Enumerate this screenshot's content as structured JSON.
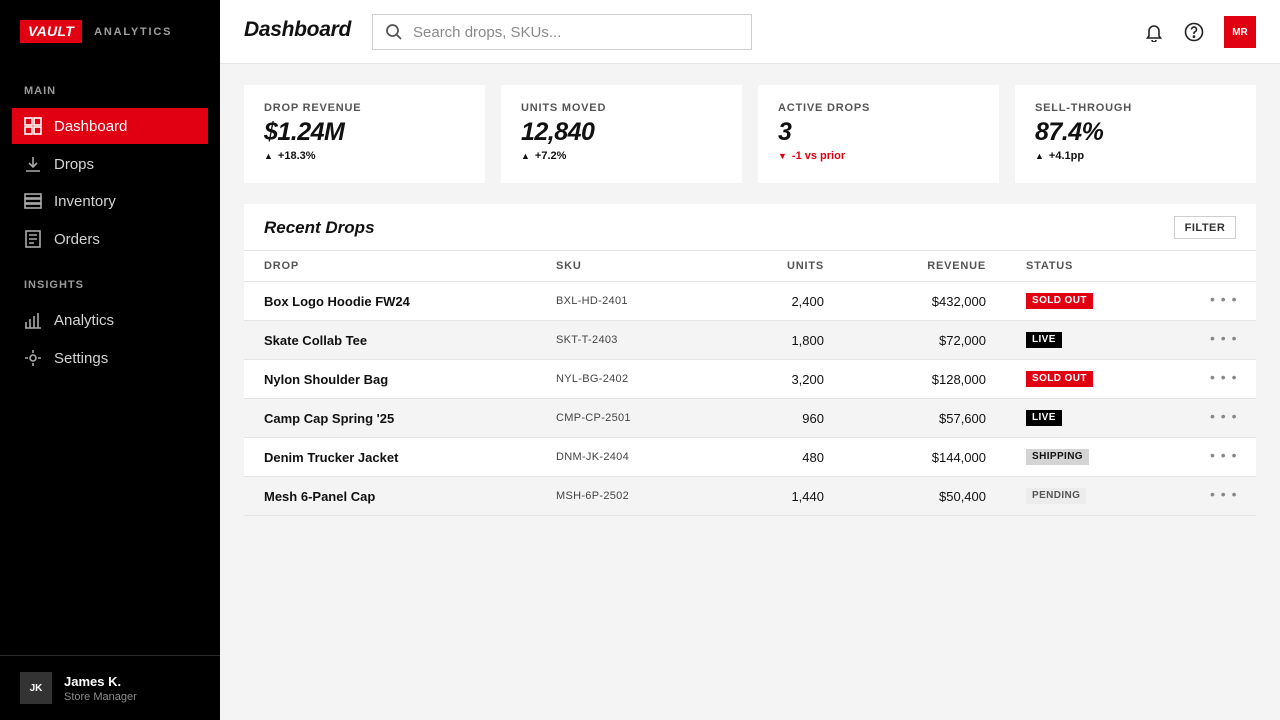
{
  "brand": {
    "logo": "VAULT",
    "subtitle": "ANALYTICS"
  },
  "sidebar": {
    "sections": [
      {
        "label": "MAIN",
        "items": [
          {
            "label": "Dashboard",
            "icon": "dashboard-icon",
            "active": true
          },
          {
            "label": "Drops",
            "icon": "download-icon",
            "active": false
          },
          {
            "label": "Inventory",
            "icon": "inventory-icon",
            "active": false
          },
          {
            "label": "Orders",
            "icon": "orders-icon",
            "active": false
          }
        ]
      },
      {
        "label": "INSIGHTS",
        "items": [
          {
            "label": "Analytics",
            "icon": "bar-chart-icon",
            "active": false
          },
          {
            "label": "Settings",
            "icon": "settings-icon",
            "active": false
          }
        ]
      }
    ],
    "user": {
      "initials": "JK",
      "name": "James K.",
      "role": "Store Manager"
    }
  },
  "header": {
    "title": "Dashboard",
    "search_placeholder": "Search drops, SKUs...",
    "avatar_initials": "MR"
  },
  "kpis": [
    {
      "label": "DROP REVENUE",
      "value": "$1.24M",
      "delta": "+18.3%",
      "direction": "up"
    },
    {
      "label": "UNITS MOVED",
      "value": "12,840",
      "delta": "+7.2%",
      "direction": "up"
    },
    {
      "label": "ACTIVE DROPS",
      "value": "3",
      "delta": "-1 vs prior",
      "direction": "down"
    },
    {
      "label": "SELL-THROUGH",
      "value": "87.4%",
      "delta": "+4.1pp",
      "direction": "up"
    }
  ],
  "table": {
    "title": "Recent Drops",
    "filter_label": "FILTER",
    "columns": {
      "drop": "DROP",
      "sku": "SKU",
      "units": "UNITS",
      "revenue": "REVENUE",
      "status": "STATUS"
    },
    "rows": [
      {
        "drop": "Box Logo Hoodie FW24",
        "sku": "BXL-HD-2401",
        "units": "2,400",
        "revenue": "$432,000",
        "status": "SOLD OUT",
        "status_type": "sold-out"
      },
      {
        "drop": "Skate Collab Tee",
        "sku": "SKT-T-2403",
        "units": "1,800",
        "revenue": "$72,000",
        "status": "LIVE",
        "status_type": "live"
      },
      {
        "drop": "Nylon Shoulder Bag",
        "sku": "NYL-BG-2402",
        "units": "3,200",
        "revenue": "$128,000",
        "status": "SOLD OUT",
        "status_type": "sold-out"
      },
      {
        "drop": "Camp Cap Spring '25",
        "sku": "CMP-CP-2501",
        "units": "960",
        "revenue": "$57,600",
        "status": "LIVE",
        "status_type": "live"
      },
      {
        "drop": "Denim Trucker Jacket",
        "sku": "DNM-JK-2404",
        "units": "480",
        "revenue": "$144,000",
        "status": "SHIPPING",
        "status_type": "shipping"
      },
      {
        "drop": "Mesh 6-Panel Cap",
        "sku": "MSH-6P-2502",
        "units": "1,440",
        "revenue": "$50,400",
        "status": "PENDING",
        "status_type": "pending"
      }
    ]
  },
  "colors": {
    "accent": "#e00012",
    "sidebar_bg": "#000000",
    "page_bg": "#f4f4f4"
  }
}
